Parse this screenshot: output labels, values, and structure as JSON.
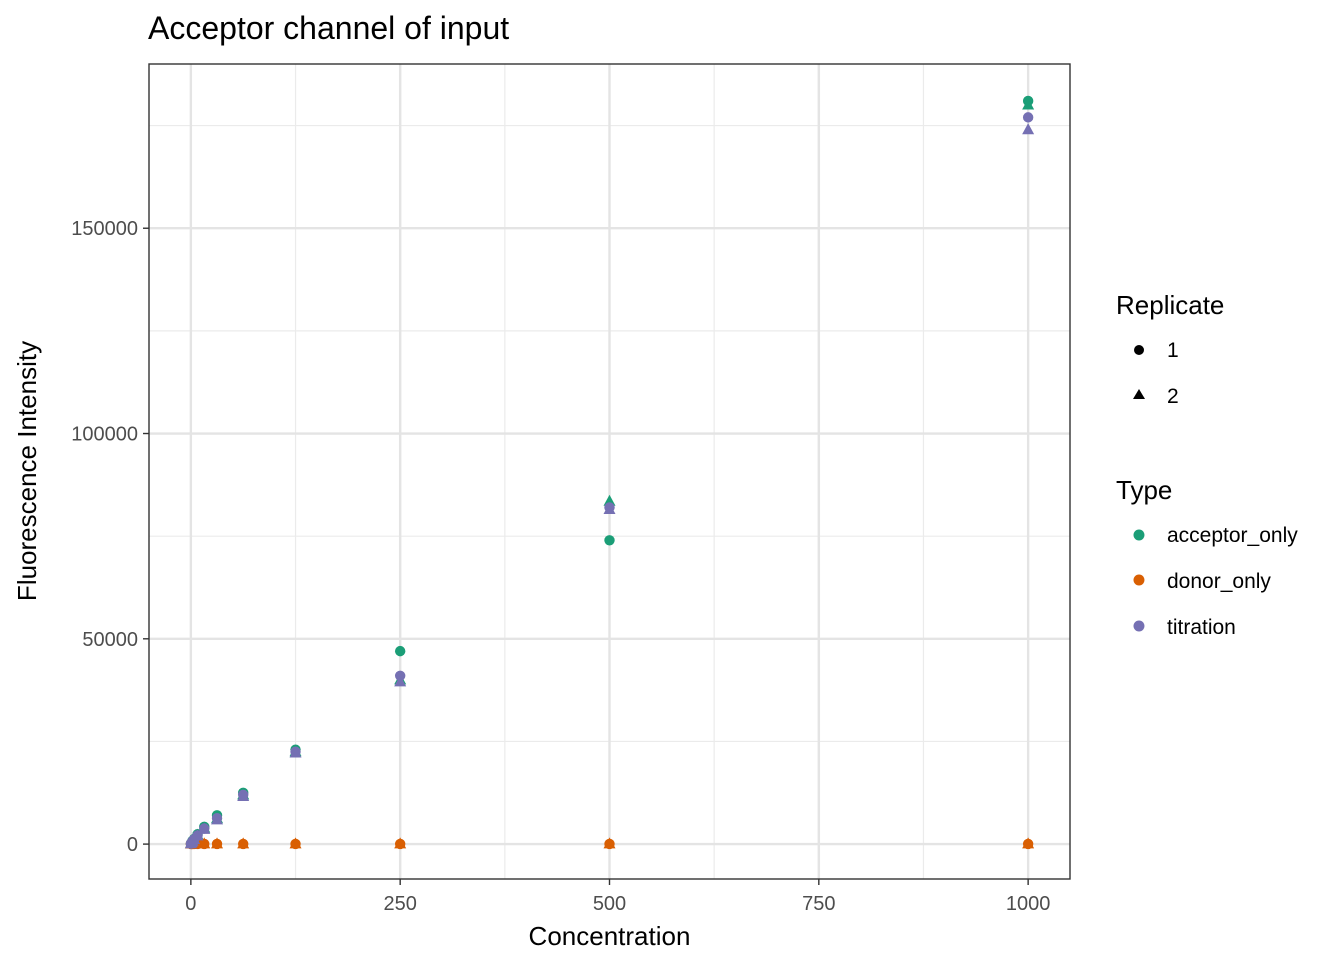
{
  "chart_data": {
    "type": "scatter",
    "title": "Acceptor channel of input",
    "xlabel": "Concentration",
    "ylabel": "Fluorescence Intensity",
    "xlim": [
      -50,
      1050
    ],
    "ylim": [
      -8500,
      190000
    ],
    "x_ticks": [
      0,
      250,
      500,
      750,
      1000
    ],
    "x_tick_labels": [
      "0",
      "250",
      "500",
      "750",
      "1000"
    ],
    "y_ticks": [
      0,
      50000,
      100000,
      150000
    ],
    "y_tick_labels": [
      "0",
      "50000",
      "100000",
      "150000"
    ],
    "grid": true,
    "legend_position": "right",
    "legends": [
      {
        "title": "Replicate",
        "entries": [
          {
            "label": "1",
            "shape": "circle"
          },
          {
            "label": "2",
            "shape": "triangle"
          }
        ]
      },
      {
        "title": "Type",
        "entries": [
          {
            "label": "acceptor_only",
            "color": "#1b9e77"
          },
          {
            "label": "donor_only",
            "color": "#d95f02"
          },
          {
            "label": "titration",
            "color": "#7570b3"
          }
        ]
      }
    ],
    "series": [
      {
        "name": "acceptor_only",
        "replicate": "1",
        "color": "#1b9e77",
        "shape": "circle",
        "x": [
          0,
          1,
          2,
          4,
          8,
          16,
          31.25,
          62.5,
          125,
          250,
          500,
          1000
        ],
        "y": [
          100,
          400,
          800,
          1300,
          2400,
          4200,
          7000,
          12500,
          23000,
          47000,
          74000,
          181000
        ]
      },
      {
        "name": "acceptor_only",
        "replicate": "2",
        "color": "#1b9e77",
        "shape": "triangle",
        "x": [
          0,
          1,
          2,
          4,
          8,
          16,
          31.25,
          62.5,
          125,
          250,
          500,
          1000
        ],
        "y": [
          100,
          400,
          700,
          1200,
          2200,
          3900,
          6200,
          12000,
          22500,
          40000,
          83500,
          180000
        ]
      },
      {
        "name": "donor_only",
        "replicate": "1",
        "color": "#d95f02",
        "shape": "circle",
        "x": [
          0,
          1,
          2,
          4,
          8,
          16,
          31.25,
          62.5,
          125,
          250,
          500,
          1000
        ],
        "y": [
          50,
          50,
          50,
          50,
          50,
          50,
          50,
          50,
          50,
          50,
          50,
          50
        ]
      },
      {
        "name": "donor_only",
        "replicate": "2",
        "color": "#d95f02",
        "shape": "triangle",
        "x": [
          0,
          1,
          2,
          4,
          8,
          16,
          31.25,
          62.5,
          125,
          250,
          500,
          1000
        ],
        "y": [
          50,
          50,
          50,
          50,
          50,
          50,
          50,
          50,
          50,
          50,
          50,
          50
        ]
      },
      {
        "name": "titration",
        "replicate": "1",
        "color": "#7570b3",
        "shape": "circle",
        "x": [
          0,
          1,
          2,
          4,
          8,
          16,
          31.25,
          62.5,
          125,
          250,
          500,
          1000
        ],
        "y": [
          100,
          350,
          700,
          1200,
          2100,
          3800,
          6300,
          12000,
          22500,
          41000,
          82000,
          177000
        ]
      },
      {
        "name": "titration",
        "replicate": "2",
        "color": "#7570b3",
        "shape": "triangle",
        "x": [
          0,
          1,
          2,
          4,
          8,
          16,
          31.25,
          62.5,
          125,
          250,
          500,
          1000
        ],
        "y": [
          100,
          350,
          650,
          1100,
          2000,
          3600,
          5900,
          11600,
          22200,
          39500,
          81500,
          174000
        ]
      }
    ]
  }
}
